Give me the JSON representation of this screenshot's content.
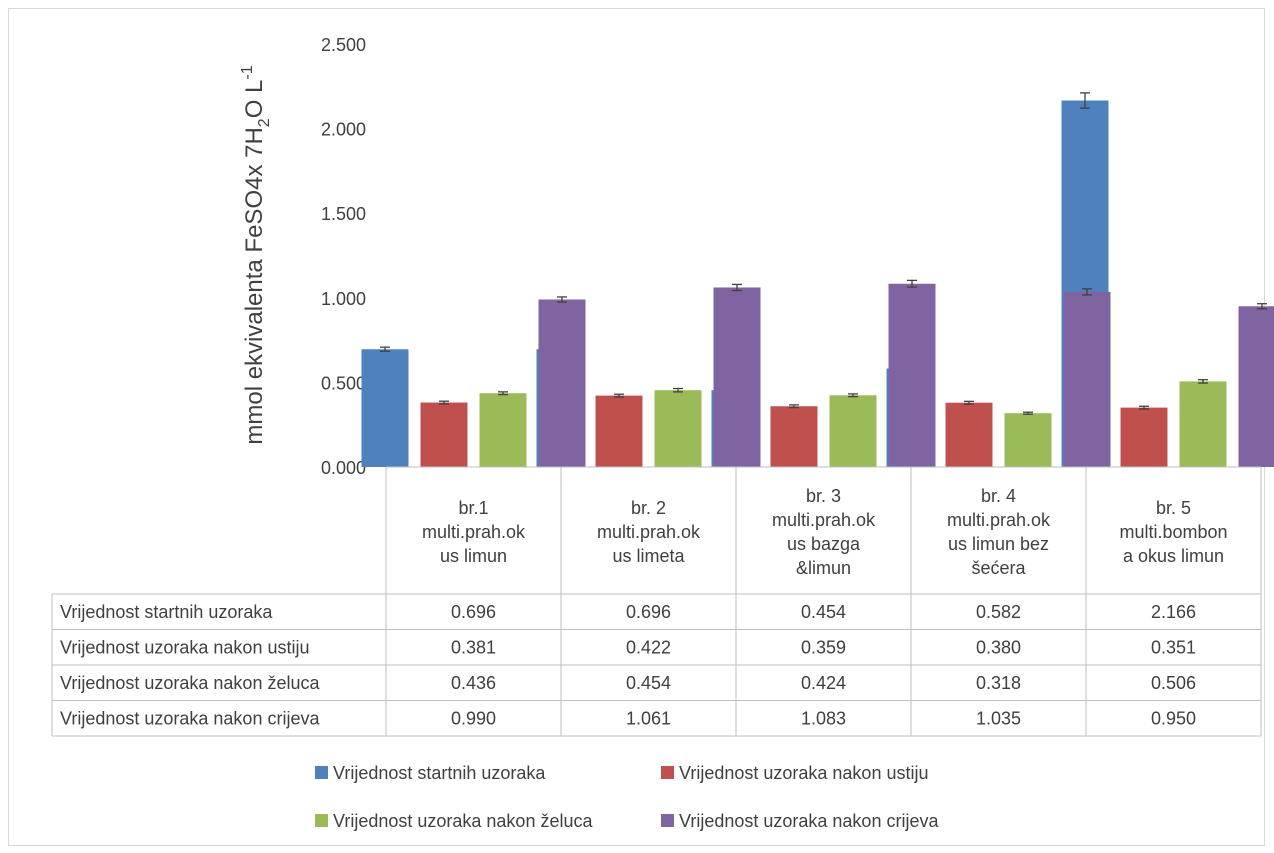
{
  "chart_data": {
    "type": "bar",
    "title": "",
    "xlabel": "",
    "ylabel_parts": [
      "mmol ekvivalenta FeSO4x 7H",
      "2",
      "O L",
      "-1"
    ],
    "ylim": [
      0,
      2.5
    ],
    "yticks": [
      "0.000",
      "0.500",
      "1.000",
      "1.500",
      "2.000",
      "2.500"
    ],
    "categories": [
      [
        "br.1",
        "multi.prah.ok",
        "us limun"
      ],
      [
        "br. 2",
        "multi.prah.ok",
        "us limeta"
      ],
      [
        "br. 3",
        "multi.prah.ok",
        "us bazga",
        "&limun"
      ],
      [
        "br. 4",
        "multi.prah.ok",
        "us limun bez",
        "šećera"
      ],
      [
        "br. 5",
        "multi.bombon",
        "a okus limun"
      ]
    ],
    "series": [
      {
        "name": "Vrijednost startnih uzoraka",
        "color": "#4f81bd",
        "values": [
          0.696,
          0.696,
          0.454,
          0.582,
          2.166
        ],
        "labels": [
          "0.696",
          "0.696",
          "0.454",
          "0.582",
          "2.166"
        ]
      },
      {
        "name": "Vrijednost uzoraka nakon ustiju",
        "color": "#c0504d",
        "values": [
          0.381,
          0.422,
          0.359,
          0.38,
          0.351
        ],
        "labels": [
          "0.381",
          "0.422",
          "0.359",
          "0.380",
          "0.351"
        ]
      },
      {
        "name": "Vrijednost uzoraka nakon želuca",
        "color": "#9bbb59",
        "values": [
          0.436,
          0.454,
          0.424,
          0.318,
          0.506
        ],
        "labels": [
          "0.436",
          "0.454",
          "0.424",
          "0.318",
          "0.506"
        ]
      },
      {
        "name": "Vrijednost uzoraka nakon crijeva",
        "color": "#8064a2",
        "values": [
          0.99,
          1.061,
          1.083,
          1.035,
          0.95
        ],
        "labels": [
          "0.990",
          "1.061",
          "1.083",
          "1.035",
          "0.950"
        ]
      }
    ],
    "error_bars": [
      [
        0.012,
        0.012,
        0.01,
        0.012,
        0.045
      ],
      [
        0.008,
        0.008,
        0.008,
        0.008,
        0.008
      ],
      [
        0.008,
        0.01,
        0.008,
        0.006,
        0.01
      ],
      [
        0.015,
        0.018,
        0.02,
        0.018,
        0.015
      ]
    ],
    "grid": false,
    "legend": "bottom",
    "data_table": true
  }
}
